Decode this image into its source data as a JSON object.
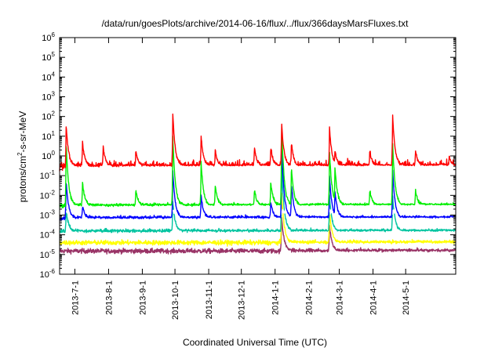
{
  "chart_data": {
    "type": "line",
    "title": "/data/run/goesPlots/archive/2014-06-16/flux/../flux/366daysMarsFluxes.txt",
    "xlabel": "Coordinated Universal Time (UTC)",
    "ylabel": {
      "main": "protons/cm",
      "sup": "2",
      "rest": "-s-sr-MeV"
    },
    "yscale": "log",
    "ylim": [
      1e-06,
      1000000.0
    ],
    "y_tick_exponents": [
      -6,
      -5,
      -4,
      -3,
      -2,
      -1,
      0,
      1,
      2,
      3,
      4,
      5,
      6
    ],
    "xlim": [
      "2013-06-17",
      "2014-06-16"
    ],
    "x_ticks": [
      {
        "label": "2013-7-1",
        "date": "2013-07-01"
      },
      {
        "label": "2013-8-1",
        "date": "2013-08-01"
      },
      {
        "label": "2013-9-1",
        "date": "2013-09-01"
      },
      {
        "label": "2013-10-1",
        "date": "2013-10-01"
      },
      {
        "label": "2013-11-1",
        "date": "2013-11-01"
      },
      {
        "label": "2013-12-1",
        "date": "2013-12-01"
      },
      {
        "label": "2014-1-1",
        "date": "2014-01-01"
      },
      {
        "label": "2014-2-1",
        "date": "2014-02-01"
      },
      {
        "label": "2014-3-1",
        "date": "2014-03-01"
      },
      {
        "label": "2014-4-1",
        "date": "2014-04-01"
      },
      {
        "label": "2014-5-1",
        "date": "2014-05-01"
      }
    ],
    "grid": false,
    "legend": "none",
    "series": [
      {
        "color": "#ff0000",
        "baseline": 0.3,
        "events": [
          [
            "2013-06-23",
            40
          ],
          [
            "2013-07-08",
            5
          ],
          [
            "2013-07-27",
            3
          ],
          [
            "2013-08-26",
            2
          ],
          [
            "2013-09-29",
            150
          ],
          [
            "2013-10-25",
            10
          ],
          [
            "2013-11-07",
            2
          ],
          [
            "2013-12-13",
            3
          ],
          [
            "2013-12-28",
            3
          ],
          [
            "2014-01-07",
            50
          ],
          [
            "2014-01-16",
            5
          ],
          [
            "2014-02-20",
            30
          ],
          [
            "2014-02-25",
            2
          ],
          [
            "2014-03-29",
            2
          ],
          [
            "2014-04-19",
            130
          ],
          [
            "2014-05-10",
            2
          ],
          [
            "2014-06-10",
            1
          ]
        ]
      },
      {
        "color": "#00ee00",
        "baseline": 0.003,
        "events": [
          [
            "2013-06-23",
            5
          ],
          [
            "2013-07-08",
            0.05
          ],
          [
            "2013-08-26",
            0.02
          ],
          [
            "2013-09-29",
            10
          ],
          [
            "2013-10-25",
            0.5
          ],
          [
            "2013-11-07",
            0.03
          ],
          [
            "2013-12-13",
            0.02
          ],
          [
            "2013-12-28",
            0.05
          ],
          [
            "2014-01-07",
            50
          ],
          [
            "2014-01-16",
            0.3
          ],
          [
            "2014-02-20",
            2
          ],
          [
            "2014-02-25",
            0.3
          ],
          [
            "2014-03-29",
            0.02
          ],
          [
            "2014-04-19",
            5
          ],
          [
            "2014-05-10",
            0.02
          ]
        ]
      },
      {
        "color": "#0000ff",
        "baseline": 0.0007,
        "events": [
          [
            "2013-06-23",
            0.05
          ],
          [
            "2013-07-08",
            0.003
          ],
          [
            "2013-09-29",
            0.2
          ],
          [
            "2013-10-25",
            0.01
          ],
          [
            "2013-12-28",
            0.005
          ],
          [
            "2014-01-07",
            5
          ],
          [
            "2014-01-16",
            0.05
          ],
          [
            "2014-02-20",
            0.1
          ],
          [
            "2014-02-25",
            0.02
          ],
          [
            "2014-04-19",
            0.2
          ]
        ]
      },
      {
        "color": "#ffffff",
        "baseline": 0.0015,
        "events": []
      },
      {
        "color": "#00c4a0",
        "baseline": 0.00015,
        "events": [
          [
            "2013-06-23",
            0.002
          ],
          [
            "2013-09-29",
            0.005
          ],
          [
            "2014-01-07",
            0.5
          ],
          [
            "2014-02-20",
            0.01
          ],
          [
            "2014-04-19",
            0.01
          ]
        ]
      },
      {
        "color": "#ffff00",
        "baseline": 4e-05,
        "events": [
          [
            "2014-01-07",
            0.02
          ],
          [
            "2014-02-20",
            0.002
          ]
        ]
      },
      {
        "color": "#993366",
        "baseline": 1.5e-05,
        "events": [
          [
            "2014-01-07",
            0.001
          ],
          [
            "2014-02-20",
            0.0003
          ]
        ]
      }
    ]
  }
}
